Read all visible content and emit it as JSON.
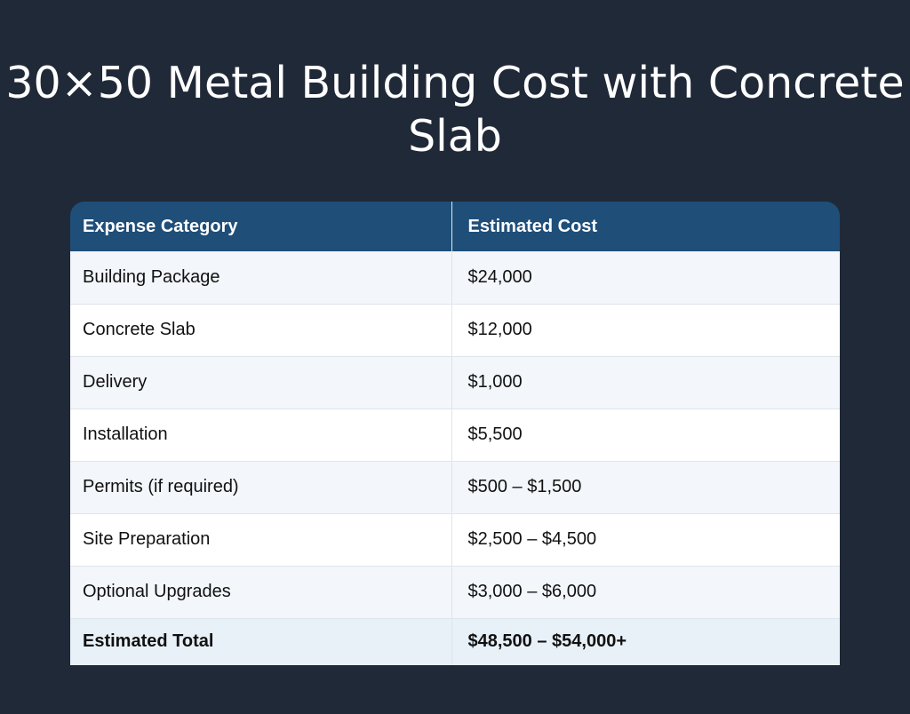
{
  "title": "30×50 Metal Building Cost with Concrete Slab",
  "table": {
    "headers": [
      "Expense Category",
      "Estimated Cost"
    ],
    "rows": [
      {
        "category": "Building Package",
        "cost": "$24,000"
      },
      {
        "category": "Concrete Slab",
        "cost": "$12,000"
      },
      {
        "category": "Delivery",
        "cost": "$1,000"
      },
      {
        "category": "Installation",
        "cost": "$5,500"
      },
      {
        "category": "Permits (if required)",
        "cost": "$500 – $1,500"
      },
      {
        "category": "Site Preparation",
        "cost": "$2,500 – $4,500"
      },
      {
        "category": "Optional Upgrades",
        "cost": "$3,000 – $6,000"
      }
    ],
    "total": {
      "category": "Estimated Total",
      "cost": "$48,500 – $54,000+"
    }
  },
  "colors": {
    "background": "#202938",
    "header": "#1f4e79",
    "row_alt": "#f3f6fa",
    "row": "#ffffff",
    "total_row": "#e8f0f8"
  }
}
